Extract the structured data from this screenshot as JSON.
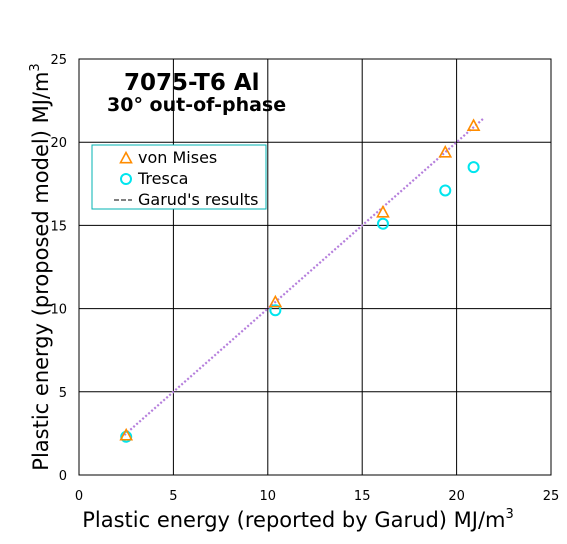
{
  "chart_data": {
    "type": "scatter",
    "title": "7075-T6 Al",
    "subtitle": "30° out-of-phase",
    "xlabel": "Plastic energy (reported by Garud) MJ/m",
    "xlabel_sup": "3",
    "ylabel": "Plastic energy (proposed model) MJ/m",
    "ylabel_sup": "3",
    "xlim": [
      0,
      25
    ],
    "ylim": [
      0,
      25
    ],
    "xticks": [
      0,
      5,
      10,
      15,
      20,
      25
    ],
    "yticks": [
      0,
      5,
      10,
      15,
      20,
      25
    ],
    "xtick_labels": [
      "0",
      "5",
      "10",
      "15",
      "20",
      "25"
    ],
    "ytick_labels": [
      "0",
      "5",
      "10",
      "15",
      "20",
      "25"
    ],
    "grid": true,
    "legend_position": "upper-left",
    "series": [
      {
        "name": "von Mises",
        "marker": "triangle",
        "color": "#ff8c00",
        "points": [
          [
            2.5,
            2.4
          ],
          [
            10.4,
            10.4
          ],
          [
            16.1,
            15.8
          ],
          [
            19.4,
            19.4
          ],
          [
            20.9,
            21.0
          ]
        ]
      },
      {
        "name": "Tresca",
        "marker": "circle",
        "color": "#00e5ee",
        "points": [
          [
            2.5,
            2.3
          ],
          [
            10.4,
            9.9
          ],
          [
            16.1,
            15.1
          ],
          [
            19.4,
            17.1
          ],
          [
            20.9,
            18.5
          ]
        ]
      },
      {
        "name": "Garud's results",
        "marker": "line",
        "color": "#b57edc",
        "points": [
          [
            2.4,
            2.4
          ],
          [
            21.4,
            21.4
          ]
        ]
      }
    ]
  }
}
